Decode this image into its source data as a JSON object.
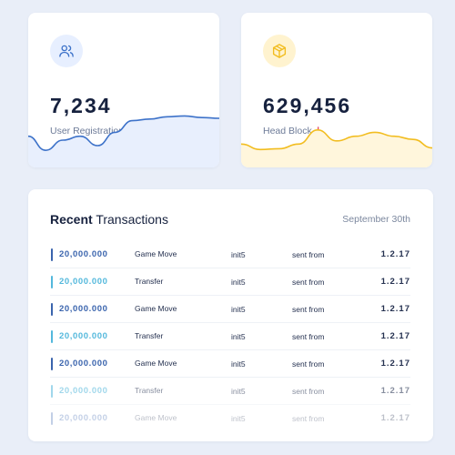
{
  "stats": [
    {
      "value": "7,234",
      "label": "User Registrations",
      "trend": "up",
      "icon": "users-icon",
      "accent": "#3d72c9",
      "series": [
        40,
        22,
        35,
        40,
        28,
        45,
        60,
        62,
        65,
        66,
        64,
        63
      ]
    },
    {
      "value": "629,456",
      "label": "Head Block",
      "trend": "down",
      "icon": "cube-icon",
      "accent": "#f2bd20",
      "series": [
        30,
        23,
        24,
        30,
        48,
        34,
        40,
        45,
        40,
        36,
        25
      ]
    }
  ],
  "transactions": {
    "title_bold": "Recent",
    "title_rest": "Transactions",
    "date": "September 30th",
    "rows": [
      {
        "amount": "20,000.000",
        "type": "Game Move",
        "address": "init5",
        "direction": "sent from",
        "version": "1.2.17",
        "color": "#3a64ad",
        "fade": 1.0
      },
      {
        "amount": "20,000.000",
        "type": "Transfer",
        "address": "init5",
        "direction": "sent from",
        "version": "1.2.17",
        "color": "#53b8dc",
        "fade": 1.0
      },
      {
        "amount": "20,000.000",
        "type": "Game Move",
        "address": "init5",
        "direction": "sent from",
        "version": "1.2.17",
        "color": "#3a64ad",
        "fade": 1.0
      },
      {
        "amount": "20,000.000",
        "type": "Transfer",
        "address": "init5",
        "direction": "sent from",
        "version": "1.2.17",
        "color": "#53b8dc",
        "fade": 1.0
      },
      {
        "amount": "20,000.000",
        "type": "Game Move",
        "address": "init5",
        "direction": "sent from",
        "version": "1.2.17",
        "color": "#3a64ad",
        "fade": 1.0
      },
      {
        "amount": "20,000.000",
        "type": "Transfer",
        "address": "init5",
        "direction": "sent from",
        "version": "1.2.17",
        "color": "#53b8dc",
        "fade": 0.55
      },
      {
        "amount": "20,000.000",
        "type": "Game Move",
        "address": "init5",
        "direction": "sent from",
        "version": "1.2.17",
        "color": "#3a64ad",
        "fade": 0.3
      }
    ]
  }
}
